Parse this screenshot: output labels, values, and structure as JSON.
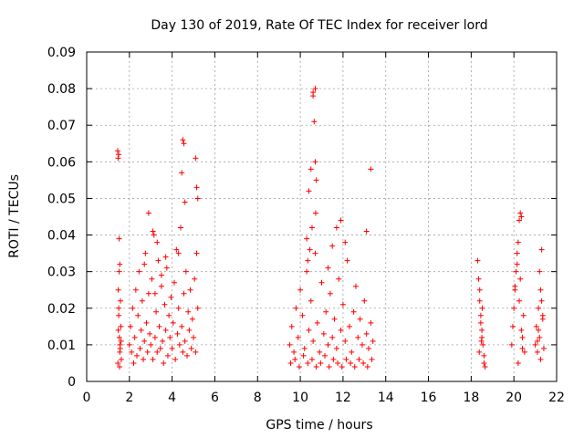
{
  "chart_data": {
    "type": "scatter",
    "title": "Day 130 of 2019, Rate Of TEC Index for receiver lord",
    "xlabel": "GPS time / hours",
    "ylabel": "ROTI / TECUs",
    "xlim": [
      0,
      22
    ],
    "ylim": [
      0,
      0.09
    ],
    "x_ticks": [
      "0",
      "2",
      "4",
      "6",
      "8",
      "10",
      "12",
      "14",
      "16",
      "18",
      "20",
      "22"
    ],
    "y_ticks": [
      "0",
      "0.01",
      "0.02",
      "0.03",
      "0.04",
      "0.05",
      "0.06",
      "0.07",
      "0.08",
      "0.09"
    ],
    "grid": true,
    "marker": "+",
    "marker_color": "#ff0000",
    "series": [
      {
        "x": [
          1.45,
          1.47,
          1.5,
          1.52,
          1.55,
          1.48,
          1.5,
          1.53,
          1.55,
          1.46,
          1.58,
          1.6,
          1.56,
          1.62,
          1.52,
          1.5,
          1.48,
          1.57,
          1.54,
          1.61,
          2.0,
          2.05,
          2.1,
          2.15,
          2.2,
          2.25,
          2.3,
          2.35,
          2.4,
          2.45,
          2.5,
          2.55,
          2.6,
          2.65,
          2.7,
          2.75,
          2.8,
          2.85,
          2.9,
          2.95,
          3.0,
          3.05,
          3.1,
          3.15,
          3.2,
          3.25,
          3.3,
          3.35,
          3.4,
          3.45,
          3.5,
          3.55,
          3.6,
          3.65,
          3.7,
          3.75,
          3.8,
          3.85,
          3.9,
          3.95,
          4.0,
          4.05,
          4.1,
          4.15,
          4.2,
          4.25,
          4.3,
          4.35,
          4.4,
          4.45,
          4.5,
          4.55,
          4.6,
          4.65,
          4.7,
          4.75,
          4.8,
          4.85,
          4.9,
          4.95,
          5.0,
          5.05,
          5.1,
          5.15,
          5.2,
          2.9,
          3.1,
          3.3,
          3.5,
          3.7,
          4.3,
          4.45,
          4.5,
          4.55,
          4.6,
          5.1,
          5.15,
          5.2,
          3.2,
          2.7,
          9.5,
          9.6,
          9.7,
          9.8,
          9.9,
          10.0,
          10.1,
          10.2,
          10.3,
          10.4,
          10.5,
          10.6,
          10.7,
          10.8,
          10.9,
          11.0,
          11.1,
          11.2,
          11.3,
          11.4,
          11.5,
          11.6,
          11.7,
          11.8,
          11.9,
          12.0,
          12.1,
          12.2,
          12.3,
          12.4,
          12.5,
          12.6,
          12.7,
          12.8,
          12.9,
          13.0,
          13.1,
          13.2,
          13.3,
          13.4,
          10.3,
          10.4,
          10.5,
          10.6,
          10.7,
          10.6,
          10.65,
          10.7,
          10.75,
          10.72,
          10.55,
          10.45,
          10.35,
          11.3,
          11.5,
          11.7,
          11.9,
          12.1,
          13.3,
          13.1,
          9.55,
          9.75,
          9.95,
          10.15,
          10.35,
          10.55,
          10.75,
          10.95,
          11.15,
          11.35,
          11.55,
          11.75,
          11.95,
          12.15,
          12.35,
          12.55,
          12.75,
          12.95,
          13.15,
          13.35,
          18.3,
          18.35,
          18.4,
          18.45,
          18.5,
          18.55,
          18.6,
          18.65,
          18.4,
          18.5,
          18.45,
          18.38,
          18.52,
          18.6,
          18.48,
          19.9,
          19.95,
          20.0,
          20.05,
          20.1,
          20.15,
          20.2,
          20.25,
          20.3,
          20.35,
          20.4,
          20.45,
          20.5,
          20.2,
          20.25,
          20.3,
          20.35,
          20.15,
          20.05,
          20.4,
          21.0,
          21.05,
          21.1,
          21.15,
          21.2,
          21.25,
          21.3,
          21.35,
          21.4,
          21.2,
          21.15,
          21.25,
          21.3,
          21.1,
          21.35
        ],
        "y": [
          0.063,
          0.061,
          0.062,
          0.039,
          0.032,
          0.025,
          0.018,
          0.012,
          0.008,
          0.005,
          0.022,
          0.015,
          0.01,
          0.006,
          0.03,
          0.02,
          0.014,
          0.009,
          0.004,
          0.011,
          0.01,
          0.015,
          0.008,
          0.02,
          0.005,
          0.012,
          0.025,
          0.007,
          0.018,
          0.03,
          0.009,
          0.014,
          0.022,
          0.006,
          0.011,
          0.035,
          0.016,
          0.008,
          0.024,
          0.013,
          0.01,
          0.028,
          0.006,
          0.04,
          0.012,
          0.019,
          0.008,
          0.033,
          0.015,
          0.009,
          0.026,
          0.011,
          0.005,
          0.021,
          0.014,
          0.031,
          0.007,
          0.018,
          0.012,
          0.023,
          0.009,
          0.016,
          0.027,
          0.006,
          0.036,
          0.013,
          0.02,
          0.01,
          0.042,
          0.015,
          0.008,
          0.024,
          0.011,
          0.03,
          0.007,
          0.019,
          0.014,
          0.025,
          0.009,
          0.017,
          0.012,
          0.028,
          0.008,
          0.035,
          0.02,
          0.046,
          0.041,
          0.038,
          0.029,
          0.034,
          0.035,
          0.057,
          0.066,
          0.065,
          0.049,
          0.061,
          0.053,
          0.05,
          0.024,
          0.032,
          0.01,
          0.015,
          0.008,
          0.02,
          0.012,
          0.025,
          0.018,
          0.009,
          0.03,
          0.014,
          0.022,
          0.011,
          0.035,
          0.016,
          0.008,
          0.027,
          0.013,
          0.019,
          0.01,
          0.024,
          0.012,
          0.017,
          0.009,
          0.028,
          0.014,
          0.021,
          0.011,
          0.033,
          0.015,
          0.008,
          0.019,
          0.026,
          0.012,
          0.017,
          0.01,
          0.022,
          0.013,
          0.009,
          0.016,
          0.011,
          0.039,
          0.052,
          0.058,
          0.079,
          0.08,
          0.078,
          0.071,
          0.06,
          0.055,
          0.046,
          0.042,
          0.036,
          0.033,
          0.031,
          0.037,
          0.042,
          0.044,
          0.038,
          0.058,
          0.041,
          0.005,
          0.006,
          0.004,
          0.007,
          0.005,
          0.006,
          0.004,
          0.005,
          0.007,
          0.004,
          0.006,
          0.005,
          0.004,
          0.006,
          0.005,
          0.004,
          0.006,
          0.005,
          0.004,
          0.006,
          0.033,
          0.028,
          0.022,
          0.018,
          0.014,
          0.01,
          0.007,
          0.004,
          0.025,
          0.012,
          0.016,
          0.008,
          0.02,
          0.005,
          0.011,
          0.01,
          0.015,
          0.02,
          0.025,
          0.03,
          0.035,
          0.038,
          0.044,
          0.046,
          0.045,
          0.012,
          0.018,
          0.008,
          0.005,
          0.022,
          0.028,
          0.014,
          0.032,
          0.026,
          0.009,
          0.01,
          0.015,
          0.008,
          0.02,
          0.012,
          0.025,
          0.036,
          0.018,
          0.009,
          0.03,
          0.014,
          0.006,
          0.022,
          0.011,
          0.017
        ]
      }
    ]
  }
}
